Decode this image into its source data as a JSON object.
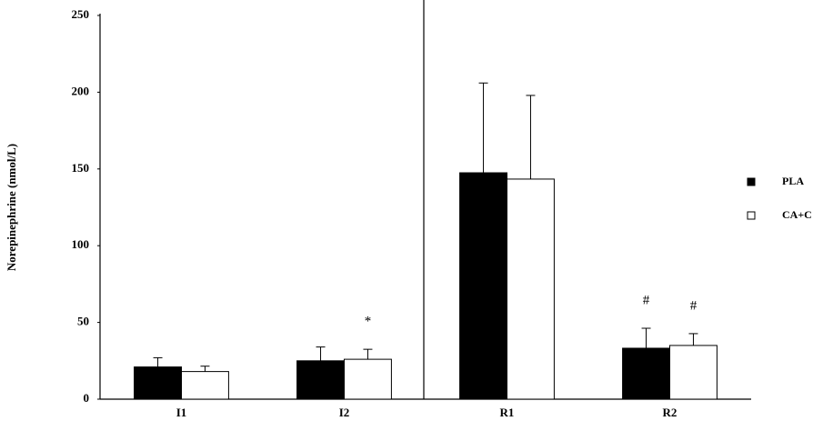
{
  "chart_data": {
    "type": "bar",
    "y_label": "Norepinephrine (nmol/L)",
    "categories": [
      "I1",
      "I2",
      "R1",
      "R2"
    ],
    "series": [
      {
        "name": "PLA",
        "color": "#000000",
        "values": [
          21,
          25,
          147.5,
          33.2
        ],
        "errors": [
          6,
          9,
          58.5,
          13
        ],
        "annotations": [
          null,
          null,
          null,
          "#"
        ]
      },
      {
        "name": "CA+C",
        "color": "#ffffff",
        "values": [
          18,
          26,
          143.4,
          35
        ],
        "errors": [
          3.5,
          6.5,
          54.5,
          7.7
        ],
        "annotations": [
          null,
          "*",
          null,
          "#"
        ]
      }
    ],
    "ylim": [
      0,
      250
    ],
    "yticks": [
      0,
      50,
      100,
      150,
      200,
      250
    ],
    "legend": "right"
  }
}
